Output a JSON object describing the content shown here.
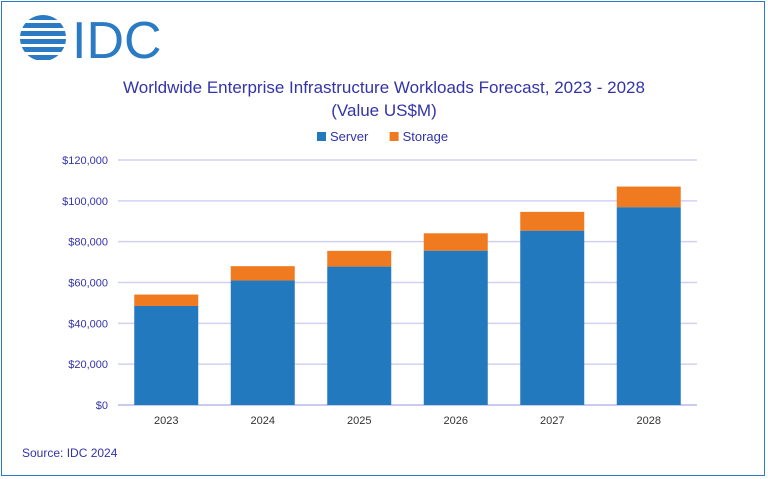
{
  "logo": {
    "text": "IDC",
    "color": "#2a7bc4"
  },
  "source": "Source: IDC 2024",
  "chart_data": {
    "type": "bar",
    "stacked": true,
    "title": "Worldwide Enterprise Infrastructure Workloads Forecast, 2023 - 2028",
    "subtitle": "(Value US$M)",
    "categories": [
      "2023",
      "2024",
      "2025",
      "2026",
      "2027",
      "2028"
    ],
    "series": [
      {
        "name": "Server",
        "color": "#2379bd",
        "values": [
          48500,
          61000,
          67800,
          75600,
          85400,
          96900
        ]
      },
      {
        "name": "Storage",
        "color": "#f07a20",
        "values": [
          5600,
          7000,
          7700,
          8500,
          9200,
          10100
        ]
      }
    ],
    "ylim": [
      0,
      120000
    ],
    "yticks": [
      0,
      20000,
      40000,
      60000,
      80000,
      100000,
      120000
    ],
    "ytick_labels": [
      "$0",
      "$20,000",
      "$40,000",
      "$60,000",
      "$80,000",
      "$100,000",
      "$120,000"
    ],
    "grid": true,
    "legend": "top"
  }
}
